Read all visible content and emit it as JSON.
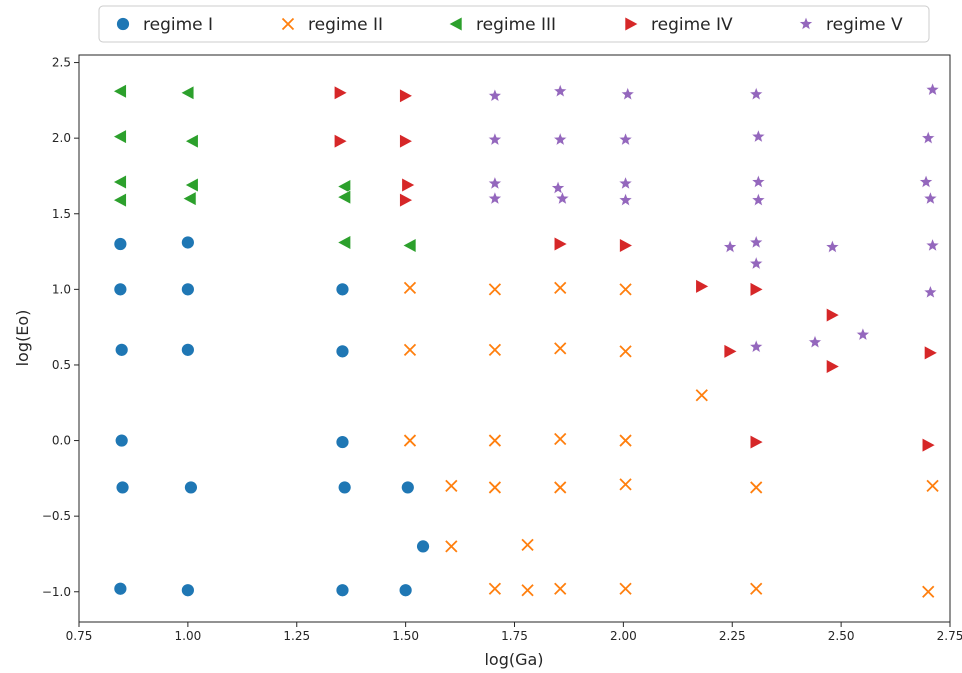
{
  "chart_data": {
    "type": "scatter",
    "xlabel": "log(Ga)",
    "ylabel": "log(Eo)",
    "xlim": [
      0.75,
      2.75
    ],
    "ylim": [
      -1.2,
      2.55
    ],
    "xticks": [
      "0.75",
      "1.00",
      "1.25",
      "1.50",
      "1.75",
      "2.00",
      "2.25",
      "2.50",
      "2.75"
    ],
    "yticks": [
      "−1.0",
      "−0.5",
      "0.0",
      "0.5",
      "1.0",
      "1.5",
      "2.0",
      "2.5"
    ],
    "legend_position": "top, outside plot, horizontal",
    "series": [
      {
        "name": "regime I",
        "marker": "circle",
        "color": "#1f77b4",
        "points": [
          [
            0.845,
            1.3
          ],
          [
            0.845,
            1.0
          ],
          [
            0.848,
            0.6
          ],
          [
            0.848,
            0.0
          ],
          [
            0.85,
            -0.31
          ],
          [
            0.845,
            -0.98
          ],
          [
            1.0,
            1.31
          ],
          [
            1.0,
            1.0
          ],
          [
            1.0,
            0.6
          ],
          [
            1.007,
            -0.31
          ],
          [
            1.0,
            -0.99
          ],
          [
            1.355,
            1.0
          ],
          [
            1.355,
            0.59
          ],
          [
            1.355,
            -0.01
          ],
          [
            1.36,
            -0.31
          ],
          [
            1.355,
            -0.99
          ],
          [
            1.505,
            -0.31
          ],
          [
            1.54,
            -0.7
          ],
          [
            1.5,
            -0.99
          ]
        ]
      },
      {
        "name": "regime II",
        "marker": "x",
        "color": "#ff7f0e",
        "points": [
          [
            1.51,
            1.01
          ],
          [
            1.51,
            0.6
          ],
          [
            1.51,
            0.0
          ],
          [
            1.605,
            -0.3
          ],
          [
            1.605,
            -0.7
          ],
          [
            1.705,
            1.0
          ],
          [
            1.705,
            0.6
          ],
          [
            1.705,
            0.0
          ],
          [
            1.705,
            -0.31
          ],
          [
            1.705,
            -0.98
          ],
          [
            1.78,
            -0.69
          ],
          [
            1.78,
            -0.99
          ],
          [
            1.855,
            1.01
          ],
          [
            1.855,
            0.61
          ],
          [
            1.855,
            0.01
          ],
          [
            1.855,
            -0.31
          ],
          [
            1.855,
            -0.98
          ],
          [
            2.005,
            1.0
          ],
          [
            2.005,
            0.59
          ],
          [
            2.005,
            0.0
          ],
          [
            2.005,
            -0.29
          ],
          [
            2.005,
            -0.98
          ],
          [
            2.18,
            0.3
          ],
          [
            2.305,
            -0.31
          ],
          [
            2.305,
            -0.98
          ],
          [
            2.71,
            -0.3
          ],
          [
            2.7,
            -1.0
          ]
        ]
      },
      {
        "name": "regime III",
        "marker": "triangle-left",
        "color": "#2ca02c",
        "points": [
          [
            0.845,
            2.31
          ],
          [
            0.845,
            2.01
          ],
          [
            0.845,
            1.71
          ],
          [
            0.845,
            1.59
          ],
          [
            1.0,
            2.3
          ],
          [
            1.01,
            1.98
          ],
          [
            1.01,
            1.69
          ],
          [
            1.005,
            1.6
          ],
          [
            1.36,
            1.68
          ],
          [
            1.36,
            1.61
          ],
          [
            1.36,
            1.31
          ],
          [
            1.51,
            1.29
          ]
        ]
      },
      {
        "name": "regime IV",
        "marker": "triangle-right",
        "color": "#d62728",
        "points": [
          [
            1.35,
            2.3
          ],
          [
            1.35,
            1.98
          ],
          [
            1.5,
            2.28
          ],
          [
            1.5,
            1.98
          ],
          [
            1.505,
            1.69
          ],
          [
            1.5,
            1.59
          ],
          [
            1.855,
            1.3
          ],
          [
            2.005,
            1.29
          ],
          [
            2.18,
            1.02
          ],
          [
            2.305,
            1.0
          ],
          [
            2.245,
            0.59
          ],
          [
            2.305,
            -0.01
          ],
          [
            2.48,
            0.83
          ],
          [
            2.48,
            0.49
          ],
          [
            2.705,
            0.58
          ],
          [
            2.7,
            -0.03
          ]
        ]
      },
      {
        "name": "regime V",
        "marker": "star",
        "color": "#9467bd",
        "points": [
          [
            1.705,
            2.28
          ],
          [
            1.705,
            1.99
          ],
          [
            1.705,
            1.7
          ],
          [
            1.705,
            1.6
          ],
          [
            1.855,
            2.31
          ],
          [
            1.855,
            1.99
          ],
          [
            1.85,
            1.67
          ],
          [
            1.86,
            1.6
          ],
          [
            2.01,
            2.29
          ],
          [
            2.005,
            1.99
          ],
          [
            2.005,
            1.7
          ],
          [
            2.005,
            1.59
          ],
          [
            2.305,
            2.29
          ],
          [
            2.31,
            2.01
          ],
          [
            2.31,
            1.71
          ],
          [
            2.31,
            1.59
          ],
          [
            2.305,
            1.31
          ],
          [
            2.305,
            1.17
          ],
          [
            2.305,
            0.62
          ],
          [
            2.245,
            1.28
          ],
          [
            2.48,
            1.28
          ],
          [
            2.44,
            0.65
          ],
          [
            2.55,
            0.7
          ],
          [
            2.71,
            2.32
          ],
          [
            2.7,
            2.0
          ],
          [
            2.695,
            1.71
          ],
          [
            2.705,
            1.6
          ],
          [
            2.71,
            1.29
          ],
          [
            2.705,
            0.98
          ]
        ]
      }
    ]
  }
}
